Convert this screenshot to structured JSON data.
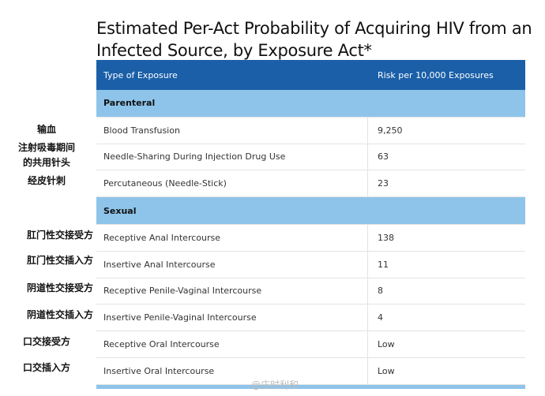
{
  "title": "Estimated Per-Act Probability of Acquiring HIV from an Infected Source, by Exposure Act*",
  "table": {
    "headers": [
      "Type of Exposure",
      "Risk per 10,000 Exposures"
    ],
    "sections": [
      {
        "name": "Parenteral",
        "rows": [
          {
            "exposure": "Blood Transfusion",
            "risk": "9,250"
          },
          {
            "exposure": "Needle-Sharing During Injection Drug Use",
            "risk": "63"
          },
          {
            "exposure": "Percutaneous (Needle-Stick)",
            "risk": "23"
          }
        ]
      },
      {
        "name": "Sexual",
        "rows": [
          {
            "exposure": "Receptive Anal Intercourse",
            "risk": "138"
          },
          {
            "exposure": "Insertive Anal Intercourse",
            "risk": "11"
          },
          {
            "exposure": "Receptive Penile-Vaginal Intercourse",
            "risk": "8"
          },
          {
            "exposure": "Insertive Penile-Vaginal Intercourse",
            "risk": "4"
          },
          {
            "exposure": "Receptive Oral Intercourse",
            "risk": "Low"
          },
          {
            "exposure": "Insertive Oral Intercourse",
            "risk": "Low"
          }
        ]
      }
    ]
  },
  "annotations": {
    "blood": "输血",
    "needle_share_1": "注射吸毒期间",
    "needle_share_2": "的共用针头",
    "percutaneous": "经皮针刺",
    "receptive_anal": "肛门性交接受方",
    "insertive_anal": "肛门性交插入方",
    "receptive_vaginal": "阴道性交接受方",
    "insertive_vaginal": "阴道性交插入方",
    "receptive_oral": "口交接受方",
    "insertive_oral": "口交插入方"
  },
  "watermark": "@庄时利和"
}
